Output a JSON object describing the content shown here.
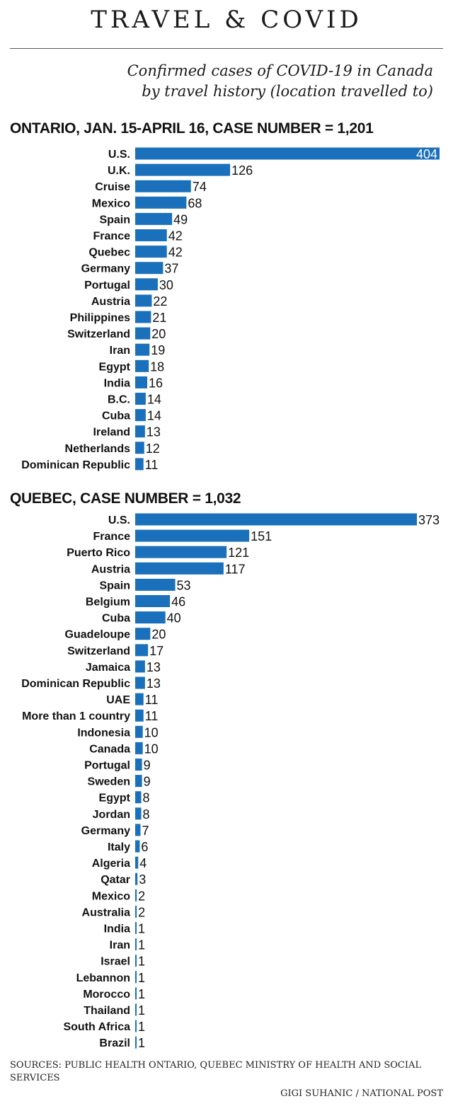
{
  "header": {
    "title": "TRAVEL & COVID",
    "subtitle_line1": "Confirmed cases of COVID-19 in Canada",
    "subtitle_line2": "by travel history (location travelled to)"
  },
  "footer": {
    "sources": "SOURCES: PUBLIC HEALTH ONTARIO, QUEBEC MINISTRY OF HEALTH AND SOCIAL SERVICES",
    "credit": "GIGI SUHANIC / NATIONAL POST"
  },
  "colors": {
    "bar": "#1a70ba",
    "label_inside": "#ffffff",
    "text": "#111111"
  },
  "chart_data": [
    {
      "type": "bar",
      "orientation": "horizontal",
      "title": "ONTARIO, JAN. 15-APRIL 16, CASE NUMBER = 1,201",
      "categories": [
        "U.S.",
        "U.K.",
        "Cruise",
        "Mexico",
        "Spain",
        "France",
        "Quebec",
        "Germany",
        "Portugal",
        "Austria",
        "Philippines",
        "Switzerland",
        "Iran",
        "Egypt",
        "India",
        "B.C.",
        "Cuba",
        "Ireland",
        "Netherlands",
        "Dominican Republic"
      ],
      "values": [
        404,
        126,
        74,
        68,
        49,
        42,
        42,
        37,
        30,
        22,
        21,
        20,
        19,
        18,
        16,
        14,
        14,
        13,
        12,
        11
      ],
      "grid": false
    },
    {
      "type": "bar",
      "orientation": "horizontal",
      "title": "QUEBEC, CASE NUMBER = 1,032",
      "categories": [
        "U.S.",
        "France",
        "Puerto Rico",
        "Austria",
        "Spain",
        "Belgium",
        "Cuba",
        "Guadeloupe",
        "Switzerland",
        "Jamaica",
        "Dominican Republic",
        "UAE",
        "More than 1 country",
        "Indonesia",
        "Canada",
        "Portugal",
        "Sweden",
        "Egypt",
        "Jordan",
        "Germany",
        "Italy",
        "Algeria",
        "Qatar",
        "Mexico",
        "Australia",
        "India",
        "Iran",
        "Israel",
        "Lebannon",
        "Morocco",
        "Thailand",
        "South Africa",
        "Brazil"
      ],
      "values": [
        373,
        151,
        121,
        117,
        53,
        46,
        40,
        20,
        17,
        13,
        13,
        11,
        11,
        10,
        10,
        9,
        9,
        8,
        8,
        7,
        6,
        4,
        3,
        2,
        2,
        1,
        1,
        1,
        1,
        1,
        1,
        1,
        1
      ],
      "grid": false
    }
  ]
}
